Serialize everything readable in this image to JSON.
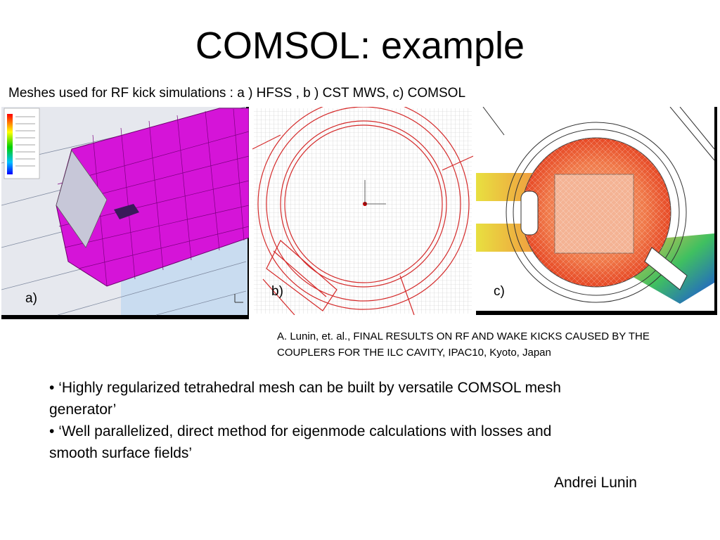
{
  "slide": {
    "title": "COMSOL: example",
    "subtitle": "Meshes used for RF kick simulations : a ) HFSS , b ) CST MWS, c) COMSOL",
    "figures": [
      {
        "label": "a)",
        "icon": "hfss-mesh-image"
      },
      {
        "label": "b)",
        "icon": "cst-mesh-image"
      },
      {
        "label": "c)",
        "icon": "comsol-mesh-image"
      }
    ],
    "reference_lines": [
      "A. Lunin, et. al., FINAL RESULTS ON RF AND WAKE KICKS CAUSED BY THE",
      "COUPLERS FOR THE ILC CAVITY, IPAC10, Kyoto, Japan"
    ],
    "bullets": [
      {
        "marker": "•",
        "lines": [
          "‘Highly regularized tetrahedral mesh can be built by versatile COMSOL mesh",
          "generator’"
        ]
      },
      {
        "marker": "•",
        "lines": [
          "‘Well parallelized, direct method for eigenmode calculations with losses and",
          "smooth surface fields’"
        ]
      }
    ],
    "author": "Andrei Lunin",
    "colors": {
      "hfss_mesh": "#dd00dd",
      "cst_lines": "#d42a2a",
      "comsol_field_high": "#e43a1a",
      "comsol_field_low": "#1a4fe0"
    }
  }
}
